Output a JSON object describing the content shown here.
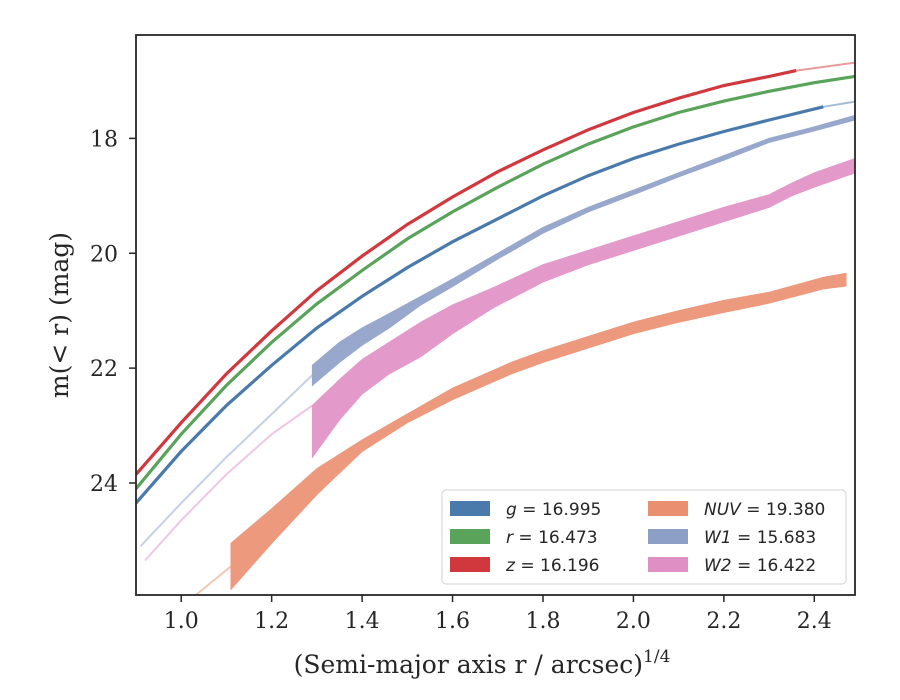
{
  "chart_data": {
    "type": "line",
    "xlabel": "(Semi-major axis r / arcsec)",
    "xlabel_sup": "1/4",
    "ylabel": "m(< r) (mag)",
    "xlim": [
      0.9,
      2.49
    ],
    "ylim": [
      25.95,
      16.2
    ],
    "y_inverted": true,
    "grid": false,
    "legend_position": "lower-right",
    "x_ticks": [
      "1.0",
      "1.2",
      "1.4",
      "1.6",
      "1.8",
      "2.0",
      "2.2",
      "2.4"
    ],
    "y_ticks": [
      "18",
      "20",
      "22",
      "24"
    ],
    "series": [
      {
        "name": "g = 16.995",
        "legend_var": "g",
        "legend_val": "16.995",
        "color": "#4a7aab",
        "kind": "line",
        "x": [
          0.9,
          1.0,
          1.1,
          1.2,
          1.3,
          1.4,
          1.5,
          1.6,
          1.7,
          1.8,
          1.9,
          2.0,
          2.1,
          2.2,
          2.3,
          2.42
        ],
        "y": [
          24.35,
          23.45,
          22.65,
          21.95,
          21.3,
          20.75,
          20.25,
          19.8,
          19.4,
          19.0,
          18.65,
          18.35,
          18.1,
          17.88,
          17.68,
          17.45
        ],
        "faint_x": [
          2.42,
          2.49
        ],
        "faint_y": [
          17.45,
          17.36
        ]
      },
      {
        "name": "r = 16.473",
        "legend_var": "r",
        "legend_val": "16.473",
        "color": "#5aa35a",
        "kind": "line",
        "x": [
          0.9,
          1.0,
          1.1,
          1.2,
          1.3,
          1.4,
          1.5,
          1.6,
          1.7,
          1.8,
          1.9,
          2.0,
          2.1,
          2.2,
          2.3,
          2.4,
          2.49
        ],
        "y": [
          24.1,
          23.15,
          22.3,
          21.55,
          20.88,
          20.3,
          19.75,
          19.28,
          18.85,
          18.45,
          18.1,
          17.8,
          17.55,
          17.35,
          17.18,
          17.03,
          16.92
        ]
      },
      {
        "name": "z = 16.196",
        "legend_var": "z",
        "legend_val": "16.196",
        "color": "#d0383d",
        "kind": "line",
        "x": [
          0.9,
          1.0,
          1.1,
          1.2,
          1.3,
          1.4,
          1.5,
          1.6,
          1.7,
          1.8,
          1.9,
          2.0,
          2.1,
          2.2,
          2.3,
          2.36
        ],
        "y": [
          23.85,
          22.95,
          22.1,
          21.35,
          20.65,
          20.05,
          19.5,
          19.02,
          18.58,
          18.2,
          17.85,
          17.55,
          17.3,
          17.08,
          16.92,
          16.82
        ],
        "faint_x": [
          2.36,
          2.49
        ],
        "faint_y": [
          16.82,
          16.68
        ]
      },
      {
        "name": "NUV = 19.380",
        "legend_var": "NUV",
        "legend_val": "19.380",
        "color": "#ea8f70",
        "kind": "band",
        "x": [
          1.11,
          1.2,
          1.3,
          1.4,
          1.5,
          1.6,
          1.73,
          1.8,
          1.9,
          2.0,
          2.1,
          2.2,
          2.3,
          2.42,
          2.47
        ],
        "y_low": [
          25.05,
          24.45,
          23.75,
          23.25,
          22.8,
          22.35,
          21.9,
          21.7,
          21.45,
          21.2,
          21.0,
          20.82,
          20.68,
          20.42,
          20.35
        ],
        "y_high": [
          25.85,
          25.05,
          24.2,
          23.45,
          22.95,
          22.55,
          22.1,
          21.9,
          21.65,
          21.4,
          21.2,
          21.03,
          20.87,
          20.62,
          20.57
        ],
        "faint_x": [
          0.98,
          1.04,
          1.11
        ],
        "faint_y": [
          26.3,
          25.9,
          25.45
        ]
      },
      {
        "name": "W1 = 15.683",
        "legend_var": "W1",
        "legend_val": "15.683",
        "color": "#8d9fc7",
        "kind": "band",
        "x": [
          1.29,
          1.35,
          1.4,
          1.46,
          1.53,
          1.6,
          1.7,
          1.8,
          1.9,
          2.0,
          2.1,
          2.2,
          2.3,
          2.4,
          2.49
        ],
        "y_low": [
          21.95,
          21.55,
          21.3,
          21.05,
          20.75,
          20.45,
          20.0,
          19.55,
          19.2,
          18.9,
          18.6,
          18.3,
          18.0,
          17.8,
          17.6
        ],
        "y_high": [
          22.3,
          21.9,
          21.6,
          21.3,
          20.9,
          20.58,
          20.1,
          19.65,
          19.28,
          18.98,
          18.67,
          18.38,
          18.07,
          17.87,
          17.68
        ],
        "faint_x": [
          0.91,
          1.0,
          1.1,
          1.2,
          1.29
        ],
        "faint_y": [
          25.1,
          24.35,
          23.55,
          22.8,
          22.12
        ]
      },
      {
        "name": "W2 = 16.422",
        "legend_var": "W2",
        "legend_val": "16.422",
        "color": "#e08fc5",
        "kind": "band",
        "x": [
          1.29,
          1.35,
          1.4,
          1.46,
          1.53,
          1.6,
          1.69,
          1.8,
          1.9,
          2.0,
          2.1,
          2.2,
          2.3,
          2.35,
          2.4,
          2.49
        ],
        "y_low": [
          22.65,
          22.2,
          21.85,
          21.55,
          21.2,
          20.9,
          20.6,
          20.2,
          19.95,
          19.7,
          19.45,
          19.2,
          18.98,
          18.78,
          18.6,
          18.35
        ],
        "y_high": [
          23.55,
          22.9,
          22.45,
          22.1,
          21.8,
          21.4,
          20.95,
          20.5,
          20.2,
          19.95,
          19.7,
          19.45,
          19.2,
          19.0,
          18.85,
          18.6
        ],
        "faint_x": [
          0.92,
          1.0,
          1.1,
          1.2,
          1.29
        ],
        "faint_y": [
          25.35,
          24.65,
          23.85,
          23.15,
          22.65
        ]
      }
    ],
    "legend_order": [
      0,
      3,
      1,
      4,
      2,
      5
    ]
  }
}
